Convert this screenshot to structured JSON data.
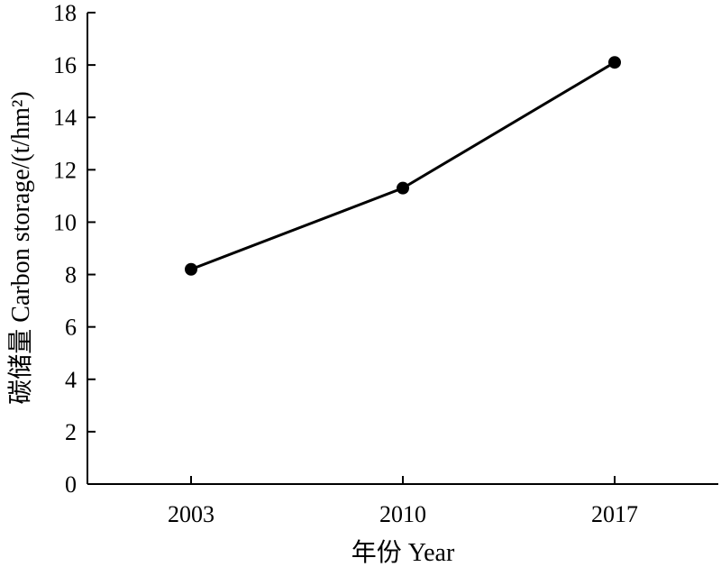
{
  "chart_data": {
    "type": "line",
    "xlabel": "年份 Year",
    "ylabel": "碳储量 Carbon storage/(t/hm²)",
    "ylim": [
      0,
      18
    ],
    "yticks": [
      0,
      2,
      4,
      6,
      8,
      10,
      12,
      14,
      16,
      18
    ],
    "categories": [
      "2003",
      "2010",
      "2017"
    ],
    "series": [
      {
        "values": [
          8.2,
          11.3,
          16.1
        ]
      }
    ],
    "grid": false,
    "legend": "none",
    "colors": {
      "line": "#000000",
      "marker": "#000000",
      "axis": "#000000"
    }
  }
}
